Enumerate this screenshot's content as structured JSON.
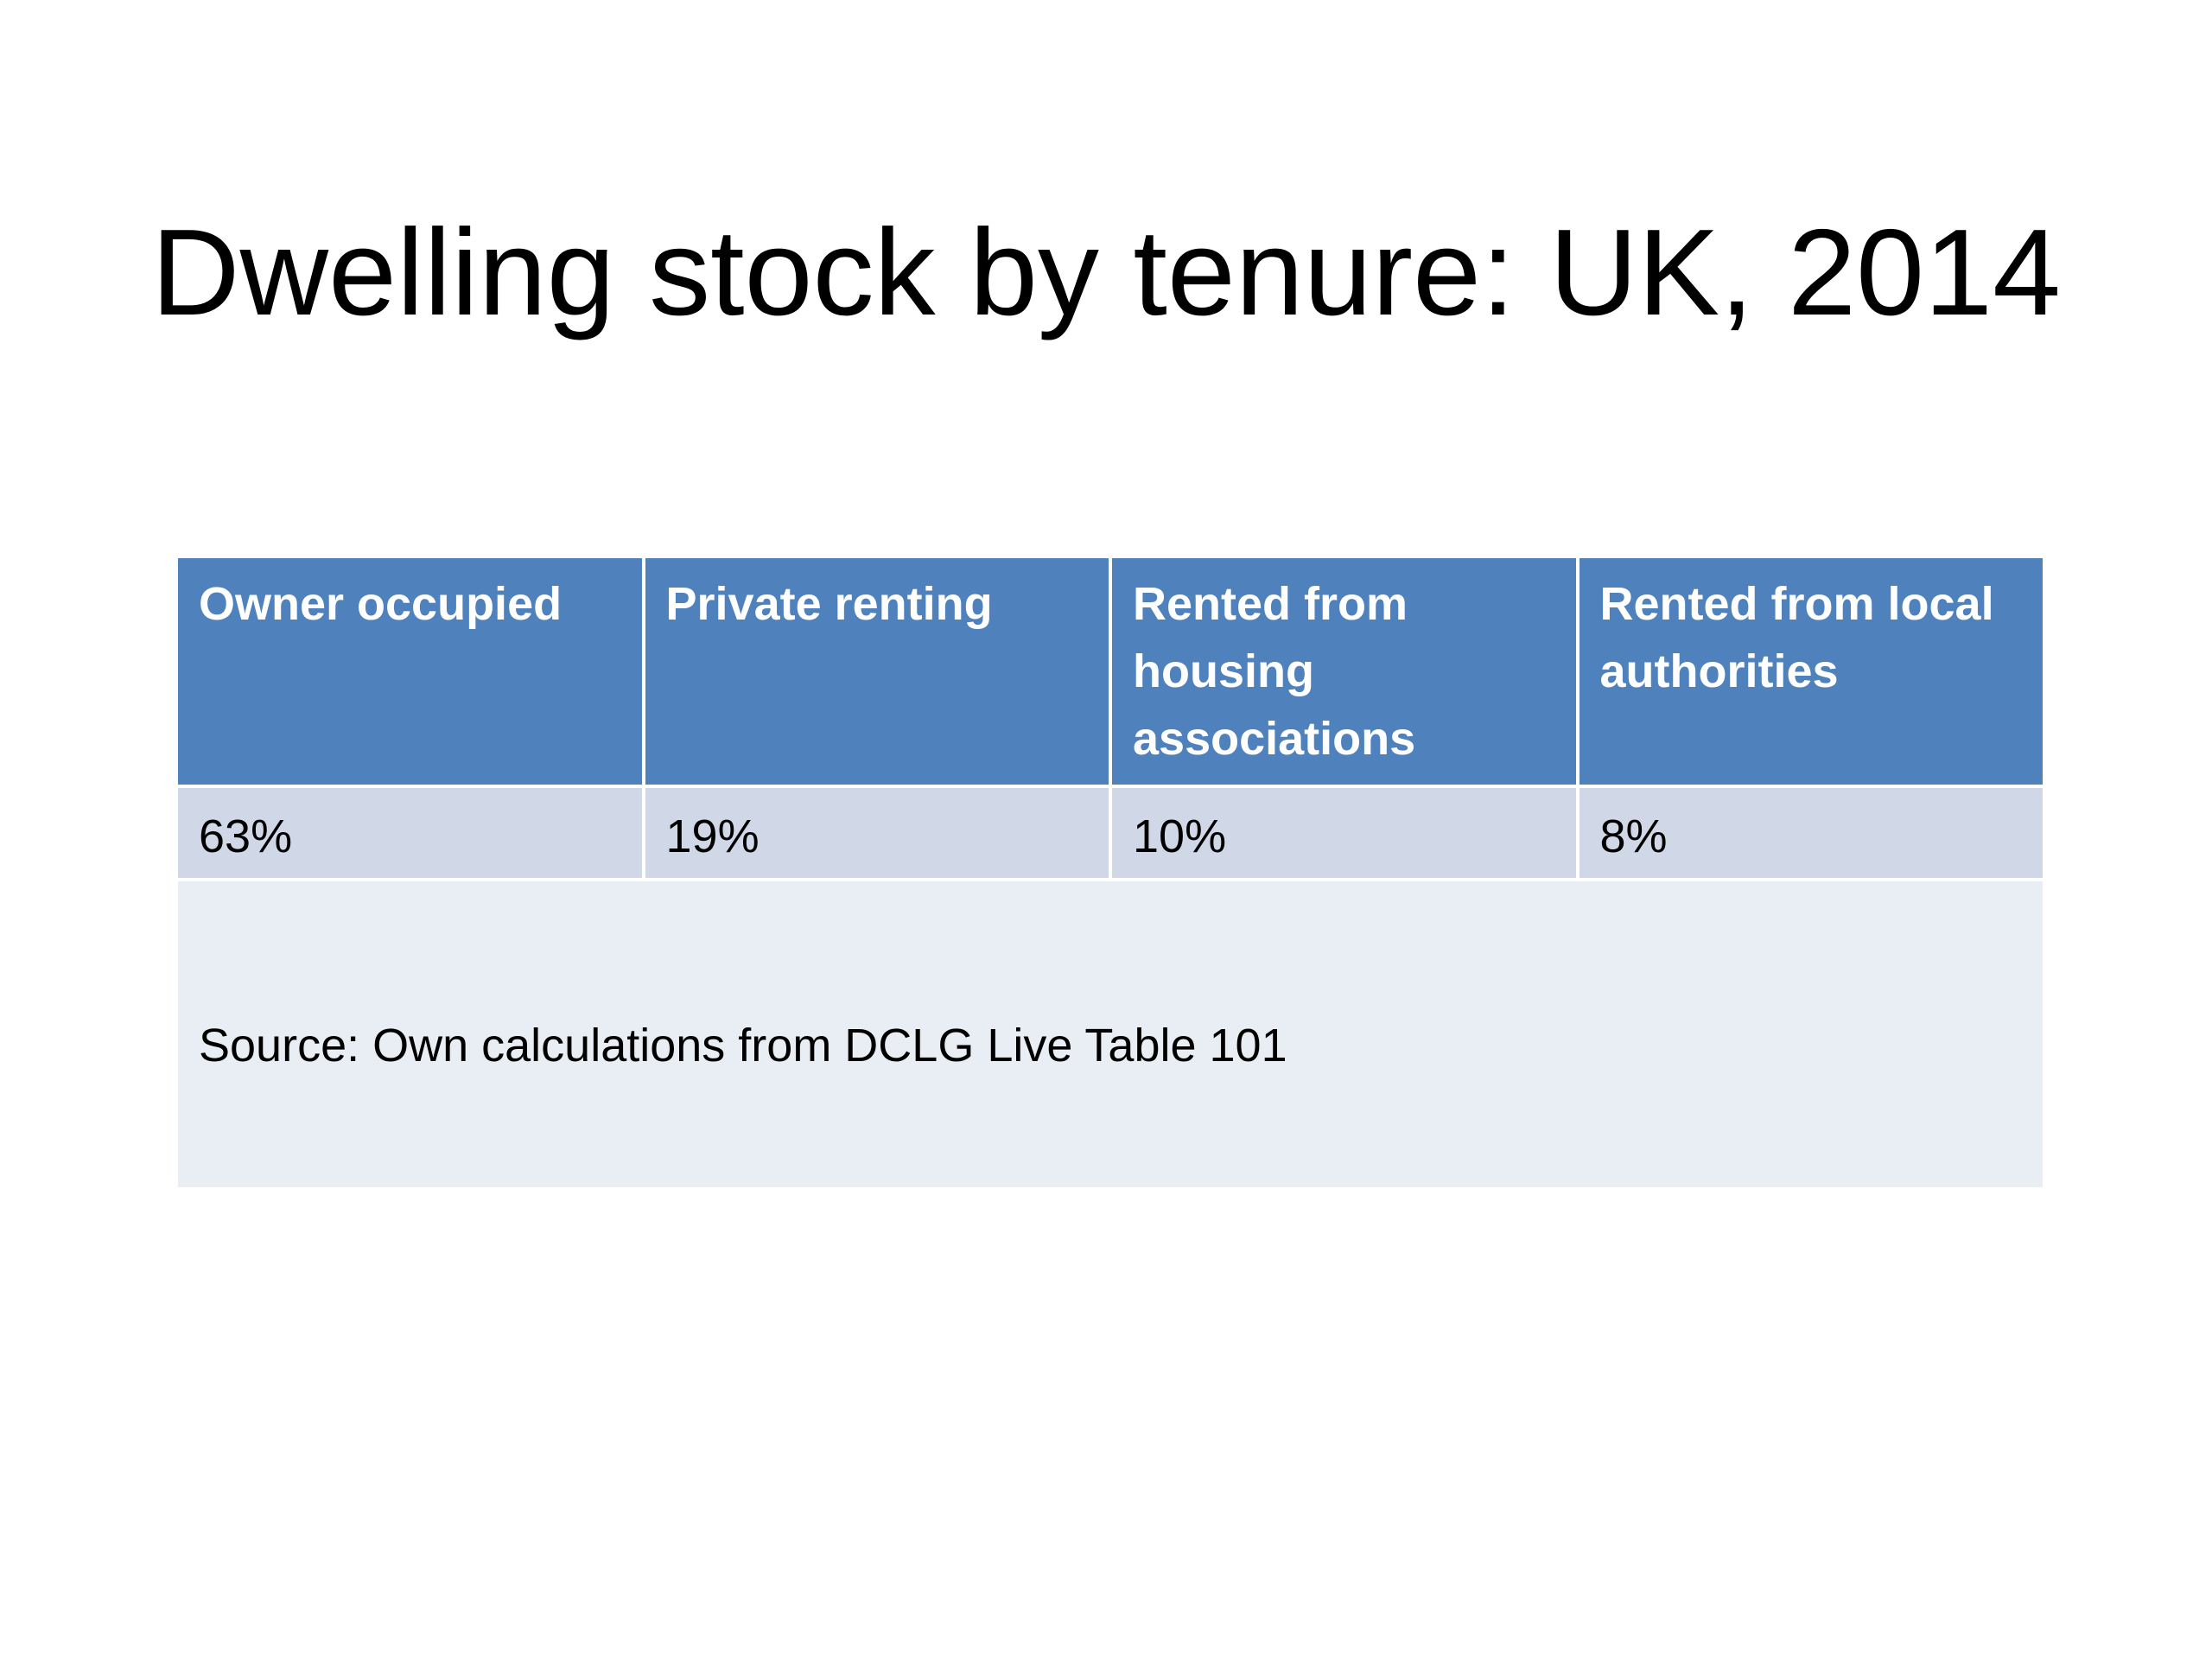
{
  "slide": {
    "title": "Dwelling stock by tenure: UK, 2014"
  },
  "table": {
    "headers": [
      "Owner occupied",
      "Private renting",
      "Rented from housing associations",
      "Rented from local authorities"
    ],
    "values": [
      "63%",
      "19%",
      "10%",
      "8%"
    ],
    "source": "Source: Own calculations from DCLG Live Table 101"
  },
  "colors": {
    "header_bg": "#4f81bd",
    "value_row_bg": "#d0d8e8",
    "source_row_bg": "#e9edf4",
    "header_text": "#ffffff",
    "body_text": "#000000"
  }
}
